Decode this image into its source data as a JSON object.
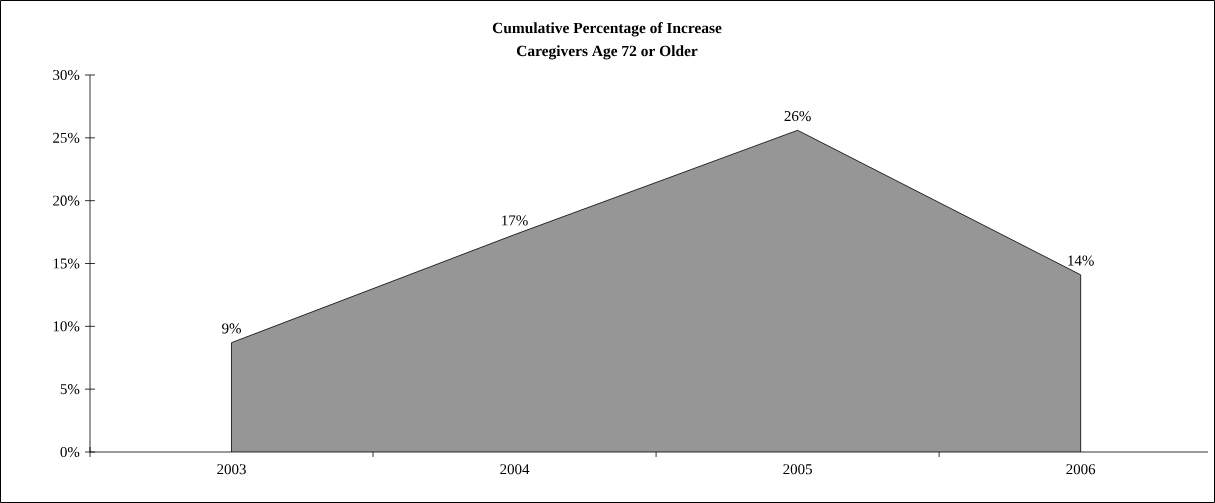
{
  "chart_data": {
    "type": "area",
    "title": "Cumulative Percentage of Increase",
    "subtitle": "Caregivers Age 72 or Older",
    "categories": [
      "2003",
      "2004",
      "2005",
      "2006"
    ],
    "values": [
      8.7,
      17.3,
      25.6,
      14.1
    ],
    "value_labels": [
      "9%",
      "17%",
      "26%",
      "14%"
    ],
    "color": "#969696",
    "ylim": [
      0,
      30
    ],
    "yticks": [
      {
        "value": 0,
        "label": "0%"
      },
      {
        "value": 5,
        "label": "5%"
      },
      {
        "value": 10,
        "label": "10%"
      },
      {
        "value": 15,
        "label": "15%"
      },
      {
        "value": 20,
        "label": "20%"
      },
      {
        "value": 25,
        "label": "25%"
      },
      {
        "value": 30,
        "label": "30%"
      }
    ],
    "grid": false
  }
}
